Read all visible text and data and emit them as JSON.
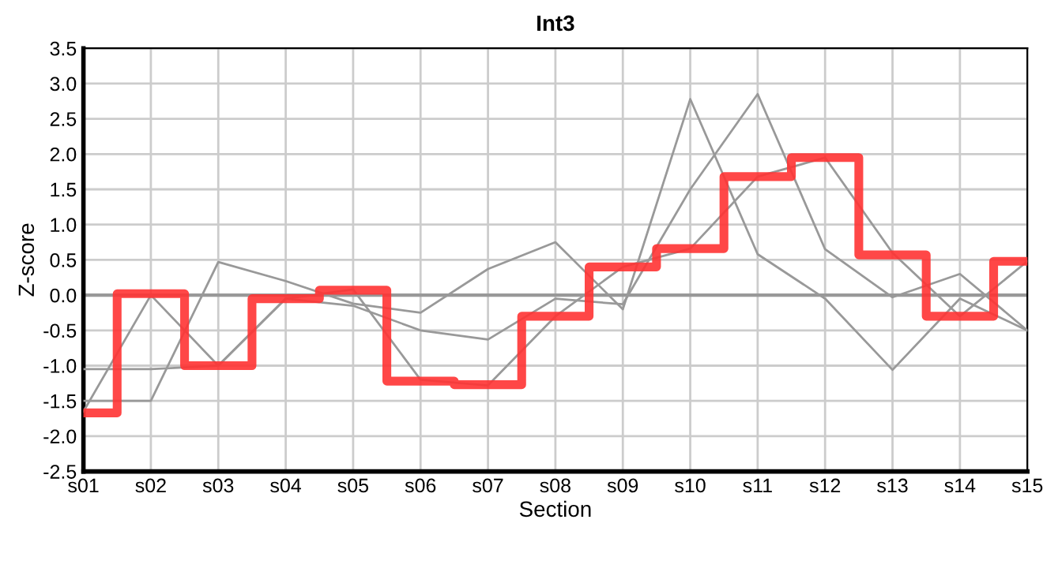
{
  "chart_data": {
    "type": "line",
    "title": "Int3",
    "xlabel": "Section",
    "ylabel": "Z-score",
    "categories": [
      "s01",
      "s02",
      "s03",
      "s04",
      "s05",
      "s06",
      "s07",
      "s08",
      "s09",
      "s10",
      "s11",
      "s12",
      "s13",
      "s14",
      "s15"
    ],
    "series": [
      {
        "color": "#999999",
        "values": [
          -1.65,
          0.0,
          -1.0,
          -0.05,
          0.08,
          -1.2,
          -1.28,
          -0.3,
          0.4,
          0.66,
          1.68,
          1.95,
          0.6,
          -0.3,
          0.48
        ]
      },
      {
        "color": "#999999",
        "values": [
          -1.05,
          -1.05,
          -1.0,
          -0.05,
          -0.15,
          -0.5,
          -0.63,
          -0.05,
          -0.13,
          1.5,
          2.85,
          0.65,
          -0.03,
          0.3,
          -0.5
        ]
      },
      {
        "color": "#999999",
        "values": [
          -1.5,
          -1.5,
          0.47,
          0.2,
          -0.12,
          -0.25,
          0.37,
          0.75,
          -0.2,
          2.78,
          0.58,
          -0.05,
          -1.06,
          -0.05,
          -0.5
        ]
      },
      {
        "type": "step",
        "color": "#ff3333",
        "values": [
          -1.67,
          0.02,
          -1.0,
          -0.05,
          0.07,
          -1.22,
          -1.27,
          -0.3,
          0.4,
          0.66,
          1.68,
          1.95,
          0.57,
          -0.3,
          0.48
        ]
      }
    ],
    "ylim": [
      -2.5,
      3.5
    ],
    "yticks": [
      {
        "value": -2.5,
        "label": "-2.5"
      },
      {
        "value": -2.0,
        "label": "-2.0"
      },
      {
        "value": -1.5,
        "label": "-1.5"
      },
      {
        "value": -1.0,
        "label": "-1.0"
      },
      {
        "value": -0.5,
        "label": "-0.5"
      },
      {
        "value": 0,
        "label": "0.0"
      },
      {
        "value": 0.5,
        "label": "0.5"
      },
      {
        "value": 1.0,
        "label": "1.0"
      },
      {
        "value": 1.5,
        "label": "1.5"
      },
      {
        "value": 2.0,
        "label": "2.0"
      },
      {
        "value": 2.5,
        "label": "2.5"
      },
      {
        "value": 3.0,
        "label": "3.0"
      },
      {
        "value": 3.5,
        "label": "3.5"
      }
    ],
    "ref_lines": [
      {
        "axis": "y",
        "value": 0,
        "color": "#999999"
      }
    ],
    "grid": true,
    "legend": false
  }
}
